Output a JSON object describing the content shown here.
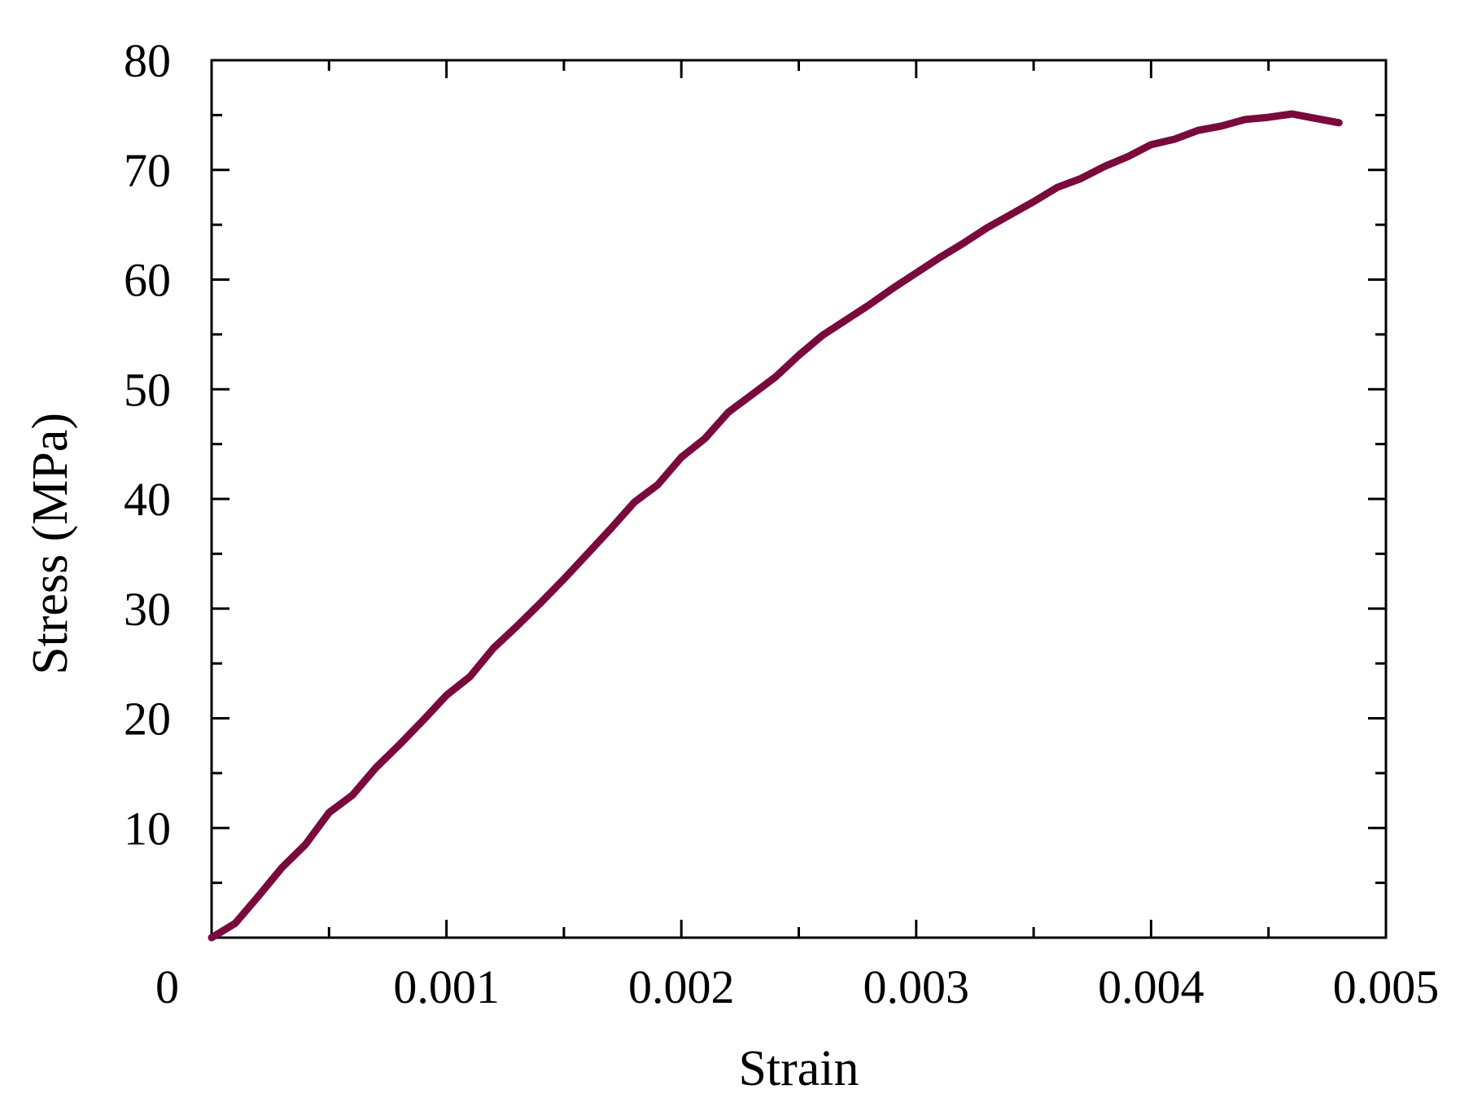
{
  "chart_data": {
    "type": "line",
    "title": "",
    "xlabel": "Strain",
    "ylabel": "Stress (MPa)",
    "xlim": [
      0,
      0.005
    ],
    "ylim": [
      0,
      80
    ],
    "x_ticks": [
      0,
      0.001,
      0.002,
      0.003,
      0.004,
      0.005
    ],
    "x_tick_labels": [
      "0",
      "0.001",
      "0.002",
      "0.003",
      "0.004",
      "0.005"
    ],
    "y_ticks": [
      10,
      20,
      30,
      40,
      50,
      60,
      70,
      80
    ],
    "y_tick_labels": [
      "10",
      "20",
      "30",
      "40",
      "50",
      "60",
      "70",
      "80"
    ],
    "x_minor_step": 0.0005,
    "y_minor_step": 5,
    "grid": false,
    "legend": "none",
    "series": [
      {
        "color": "#7a0a3c",
        "x": [
          0,
          0.0001,
          0.0002,
          0.0003,
          0.0004,
          0.0005,
          0.0006,
          0.0007,
          0.0008,
          0.0009,
          0.001,
          0.0011,
          0.0012,
          0.0013,
          0.0014,
          0.0015,
          0.0016,
          0.0017,
          0.0018,
          0.0019,
          0.002,
          0.0021,
          0.0022,
          0.0023,
          0.0024,
          0.0025,
          0.0026,
          0.0027,
          0.0028,
          0.0029,
          0.003,
          0.0031,
          0.0032,
          0.0033,
          0.0034,
          0.0035,
          0.0036,
          0.0037,
          0.0038,
          0.0039,
          0.004,
          0.0041,
          0.0042,
          0.0043,
          0.0044,
          0.0045,
          0.0046,
          0.0047,
          0.0048
        ],
        "y": [
          0,
          1.3,
          3.8,
          6.4,
          8.5,
          11.4,
          13.0,
          15.5,
          17.6,
          19.8,
          22.1,
          23.8,
          26.4,
          28.4,
          30.5,
          32.7,
          35.0,
          37.3,
          39.7,
          41.3,
          43.8,
          45.5,
          47.9,
          49.5,
          51.1,
          53.1,
          54.9,
          56.3,
          57.7,
          59.2,
          60.6,
          62.0,
          63.3,
          64.7,
          65.9,
          67.1,
          68.4,
          69.2,
          70.3,
          71.2,
          72.3,
          72.8,
          73.6,
          74.0,
          74.6,
          74.8,
          75.1,
          74.7,
          74.3
        ]
      }
    ],
    "colors": {
      "line": "#7a0a3c",
      "axis": "#000000",
      "background": "#ffffff"
    }
  }
}
